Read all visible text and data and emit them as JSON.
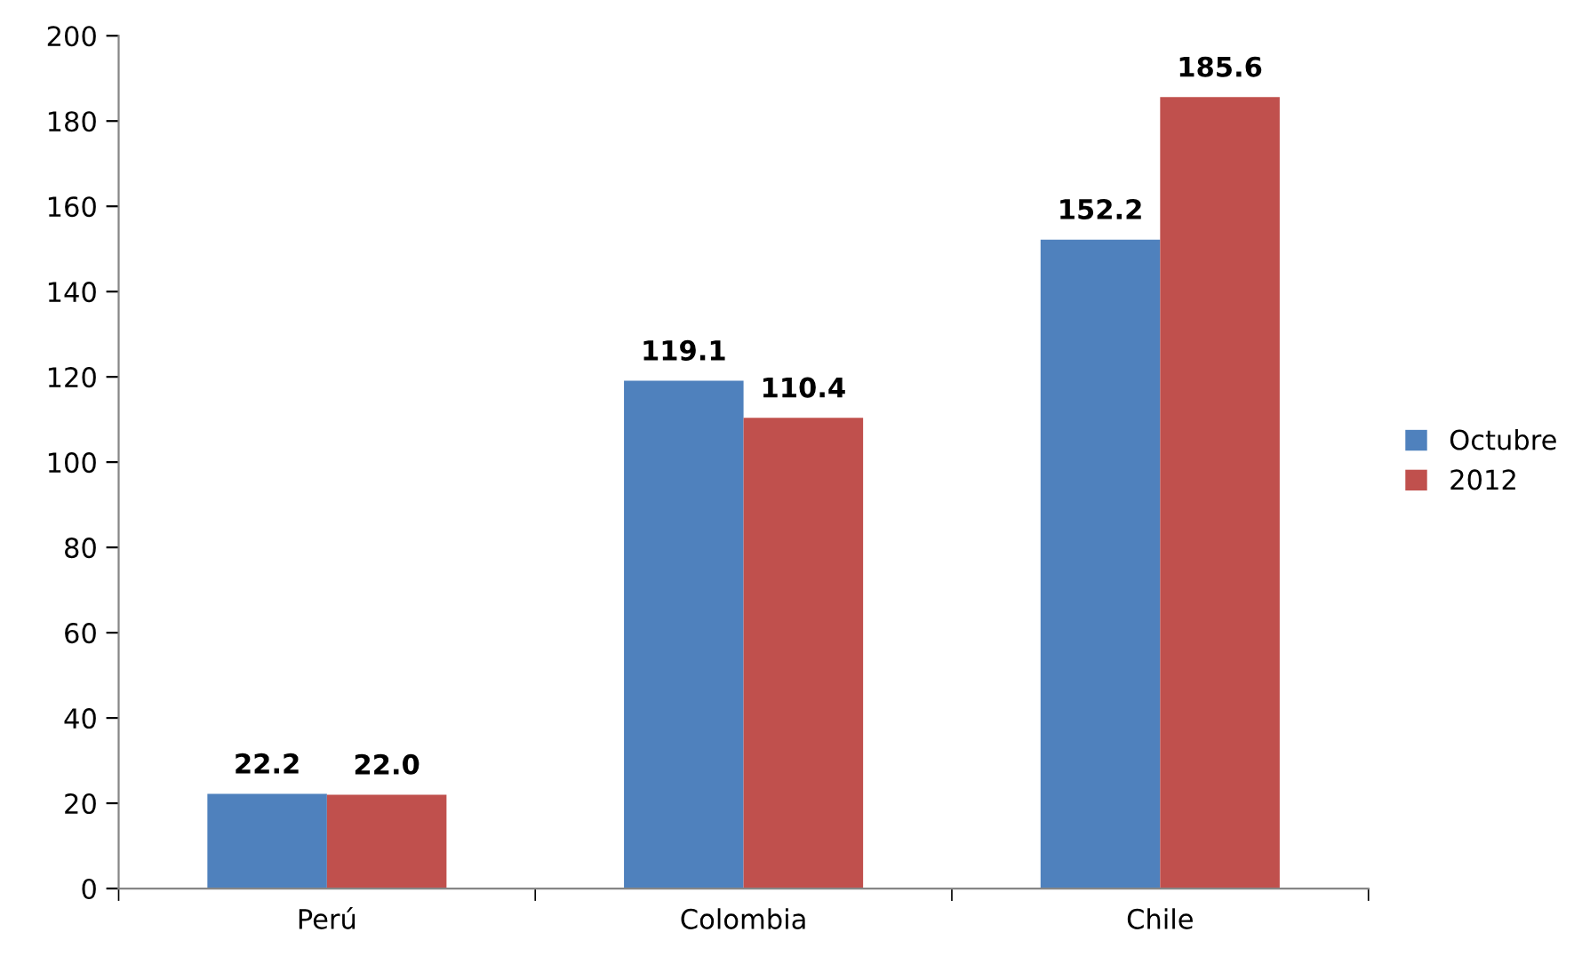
{
  "chart_data": {
    "type": "bar",
    "categories": [
      "Perú",
      "Colombia",
      "Chile"
    ],
    "series": [
      {
        "name": "Octubre",
        "color": "#4f81bd",
        "values": [
          22.2,
          119.1,
          152.2
        ],
        "value_labels": [
          "22.2",
          "119.1",
          "152.2"
        ]
      },
      {
        "name": "2012",
        "color": "#c0504d",
        "values": [
          22.0,
          110.4,
          185.6
        ],
        "value_labels": [
          "22.0",
          "110.4",
          "185.6"
        ]
      }
    ],
    "ylim": [
      0,
      200
    ],
    "yticks": [
      0,
      20,
      40,
      60,
      80,
      100,
      120,
      140,
      160,
      180,
      200
    ],
    "grid": false,
    "legend": "right"
  }
}
